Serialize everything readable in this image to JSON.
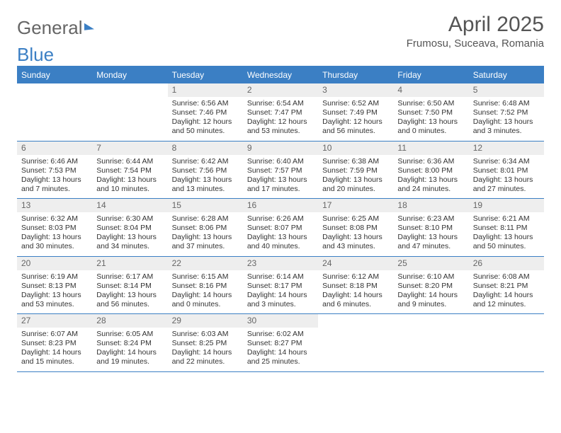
{
  "logo": {
    "text_gray": "General",
    "text_blue": "Blue"
  },
  "title": "April 2025",
  "location": "Frumosu, Suceava, Romania",
  "colors": {
    "header_bg": "#3b7fc4",
    "header_text": "#ffffff",
    "daynum_bg": "#eeeeee",
    "daynum_text": "#666666",
    "body_text": "#333333",
    "rule": "#3b7fc4",
    "page_bg": "#ffffff"
  },
  "typography": {
    "title_fontsize": 30,
    "location_fontsize": 15,
    "dayheader_fontsize": 12,
    "cell_fontsize": 10.5
  },
  "day_headers": [
    "Sunday",
    "Monday",
    "Tuesday",
    "Wednesday",
    "Thursday",
    "Friday",
    "Saturday"
  ],
  "weeks": [
    [
      null,
      null,
      {
        "n": "1",
        "sr": "Sunrise: 6:56 AM",
        "ss": "Sunset: 7:46 PM",
        "dl": "Daylight: 12 hours and 50 minutes."
      },
      {
        "n": "2",
        "sr": "Sunrise: 6:54 AM",
        "ss": "Sunset: 7:47 PM",
        "dl": "Daylight: 12 hours and 53 minutes."
      },
      {
        "n": "3",
        "sr": "Sunrise: 6:52 AM",
        "ss": "Sunset: 7:49 PM",
        "dl": "Daylight: 12 hours and 56 minutes."
      },
      {
        "n": "4",
        "sr": "Sunrise: 6:50 AM",
        "ss": "Sunset: 7:50 PM",
        "dl": "Daylight: 13 hours and 0 minutes."
      },
      {
        "n": "5",
        "sr": "Sunrise: 6:48 AM",
        "ss": "Sunset: 7:52 PM",
        "dl": "Daylight: 13 hours and 3 minutes."
      }
    ],
    [
      {
        "n": "6",
        "sr": "Sunrise: 6:46 AM",
        "ss": "Sunset: 7:53 PM",
        "dl": "Daylight: 13 hours and 7 minutes."
      },
      {
        "n": "7",
        "sr": "Sunrise: 6:44 AM",
        "ss": "Sunset: 7:54 PM",
        "dl": "Daylight: 13 hours and 10 minutes."
      },
      {
        "n": "8",
        "sr": "Sunrise: 6:42 AM",
        "ss": "Sunset: 7:56 PM",
        "dl": "Daylight: 13 hours and 13 minutes."
      },
      {
        "n": "9",
        "sr": "Sunrise: 6:40 AM",
        "ss": "Sunset: 7:57 PM",
        "dl": "Daylight: 13 hours and 17 minutes."
      },
      {
        "n": "10",
        "sr": "Sunrise: 6:38 AM",
        "ss": "Sunset: 7:59 PM",
        "dl": "Daylight: 13 hours and 20 minutes."
      },
      {
        "n": "11",
        "sr": "Sunrise: 6:36 AM",
        "ss": "Sunset: 8:00 PM",
        "dl": "Daylight: 13 hours and 24 minutes."
      },
      {
        "n": "12",
        "sr": "Sunrise: 6:34 AM",
        "ss": "Sunset: 8:01 PM",
        "dl": "Daylight: 13 hours and 27 minutes."
      }
    ],
    [
      {
        "n": "13",
        "sr": "Sunrise: 6:32 AM",
        "ss": "Sunset: 8:03 PM",
        "dl": "Daylight: 13 hours and 30 minutes."
      },
      {
        "n": "14",
        "sr": "Sunrise: 6:30 AM",
        "ss": "Sunset: 8:04 PM",
        "dl": "Daylight: 13 hours and 34 minutes."
      },
      {
        "n": "15",
        "sr": "Sunrise: 6:28 AM",
        "ss": "Sunset: 8:06 PM",
        "dl": "Daylight: 13 hours and 37 minutes."
      },
      {
        "n": "16",
        "sr": "Sunrise: 6:26 AM",
        "ss": "Sunset: 8:07 PM",
        "dl": "Daylight: 13 hours and 40 minutes."
      },
      {
        "n": "17",
        "sr": "Sunrise: 6:25 AM",
        "ss": "Sunset: 8:08 PM",
        "dl": "Daylight: 13 hours and 43 minutes."
      },
      {
        "n": "18",
        "sr": "Sunrise: 6:23 AM",
        "ss": "Sunset: 8:10 PM",
        "dl": "Daylight: 13 hours and 47 minutes."
      },
      {
        "n": "19",
        "sr": "Sunrise: 6:21 AM",
        "ss": "Sunset: 8:11 PM",
        "dl": "Daylight: 13 hours and 50 minutes."
      }
    ],
    [
      {
        "n": "20",
        "sr": "Sunrise: 6:19 AM",
        "ss": "Sunset: 8:13 PM",
        "dl": "Daylight: 13 hours and 53 minutes."
      },
      {
        "n": "21",
        "sr": "Sunrise: 6:17 AM",
        "ss": "Sunset: 8:14 PM",
        "dl": "Daylight: 13 hours and 56 minutes."
      },
      {
        "n": "22",
        "sr": "Sunrise: 6:15 AM",
        "ss": "Sunset: 8:16 PM",
        "dl": "Daylight: 14 hours and 0 minutes."
      },
      {
        "n": "23",
        "sr": "Sunrise: 6:14 AM",
        "ss": "Sunset: 8:17 PM",
        "dl": "Daylight: 14 hours and 3 minutes."
      },
      {
        "n": "24",
        "sr": "Sunrise: 6:12 AM",
        "ss": "Sunset: 8:18 PM",
        "dl": "Daylight: 14 hours and 6 minutes."
      },
      {
        "n": "25",
        "sr": "Sunrise: 6:10 AM",
        "ss": "Sunset: 8:20 PM",
        "dl": "Daylight: 14 hours and 9 minutes."
      },
      {
        "n": "26",
        "sr": "Sunrise: 6:08 AM",
        "ss": "Sunset: 8:21 PM",
        "dl": "Daylight: 14 hours and 12 minutes."
      }
    ],
    [
      {
        "n": "27",
        "sr": "Sunrise: 6:07 AM",
        "ss": "Sunset: 8:23 PM",
        "dl": "Daylight: 14 hours and 15 minutes."
      },
      {
        "n": "28",
        "sr": "Sunrise: 6:05 AM",
        "ss": "Sunset: 8:24 PM",
        "dl": "Daylight: 14 hours and 19 minutes."
      },
      {
        "n": "29",
        "sr": "Sunrise: 6:03 AM",
        "ss": "Sunset: 8:25 PM",
        "dl": "Daylight: 14 hours and 22 minutes."
      },
      {
        "n": "30",
        "sr": "Sunrise: 6:02 AM",
        "ss": "Sunset: 8:27 PM",
        "dl": "Daylight: 14 hours and 25 minutes."
      },
      null,
      null,
      null
    ]
  ]
}
